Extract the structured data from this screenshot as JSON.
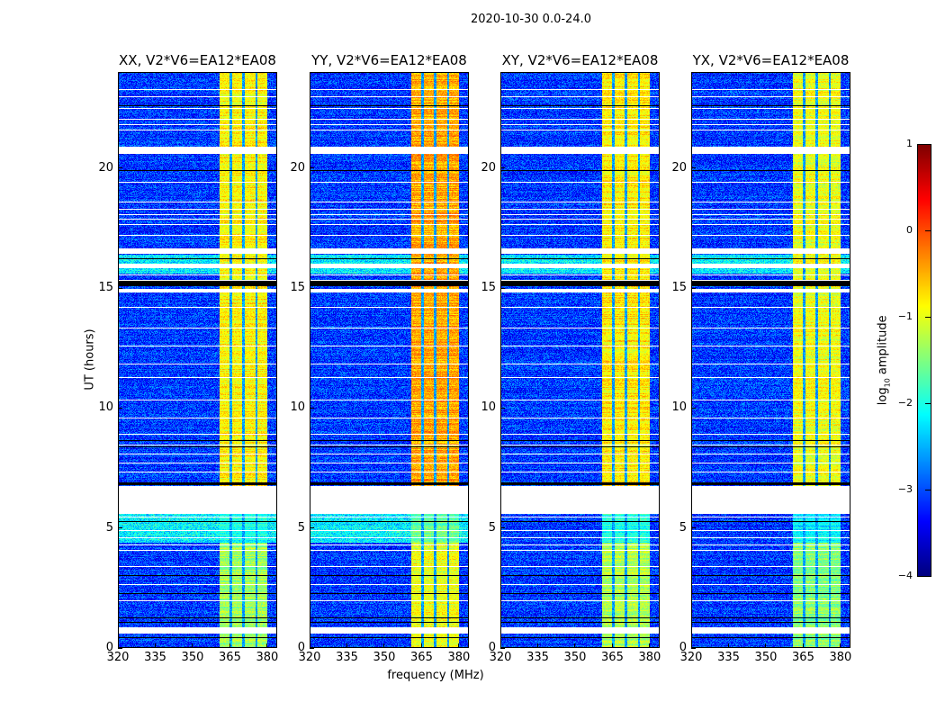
{
  "chart_data": {
    "type": "heatmap",
    "title": "2020-10-30 0.0-24.0",
    "xlabel": "frequency (MHz)",
    "ylabel": "UT (hours)",
    "xlim": [
      320,
      384
    ],
    "ylim": [
      0,
      24
    ],
    "xticks": [
      "320",
      "335",
      "350",
      "365",
      "380"
    ],
    "xtick_values": [
      320,
      335,
      350,
      365,
      380
    ],
    "yticks": [
      "0",
      "5",
      "10",
      "15",
      "20"
    ],
    "ytick_values": [
      0,
      5,
      10,
      15,
      20
    ],
    "colormap": "jet",
    "colorbar": {
      "label_base": "log",
      "label_sub": "10",
      "label_rest": " amplitude",
      "range": [
        -4,
        1
      ],
      "ticks": [
        "1",
        "0",
        "−1",
        "−2",
        "−3",
        "−4"
      ],
      "tick_values": [
        1,
        0,
        -1,
        -2,
        -3,
        -4
      ]
    },
    "panels": [
      {
        "title": "XX, V2*V6=EA12*EA08",
        "band_level": -0.85,
        "low_period_boost": 0.9
      },
      {
        "title": "YY, V2*V6=EA12*EA08",
        "band_level": -0.45,
        "low_period_boost": 0.9
      },
      {
        "title": "XY, V2*V6=EA12*EA08",
        "band_level": -0.8,
        "low_period_boost": 0.0
      },
      {
        "title": "YX, V2*V6=EA12*EA08",
        "band_level": -0.95,
        "low_period_boost": 0.0
      }
    ],
    "background_level": -3.1,
    "rfi_band_mhz": [
      360.7,
      380.0
    ],
    "rfi_band_gaps_mhz": [
      365.4,
      370.5,
      375.6
    ],
    "weak_band_hours": [
      [
        0,
        4.4
      ],
      [
        4.4,
        5.6
      ]
    ],
    "bright_background_hours": [
      [
        15.6,
        16.4
      ],
      [
        4.4,
        5.6
      ]
    ],
    "flagged_hours": [
      [
        5.59,
        6.75
      ],
      [
        20.6,
        20.9
      ],
      [
        16.42,
        16.65
      ],
      [
        15.83,
        16.01
      ],
      [
        14.81,
        14.96
      ],
      [
        0.6,
        0.85
      ],
      [
        23.25,
        23.29
      ],
      [
        22.95,
        22.99
      ],
      [
        22.46,
        22.5
      ],
      [
        22.01,
        22.05
      ],
      [
        21.79,
        21.83
      ],
      [
        21.56,
        21.6
      ],
      [
        19.39,
        19.43
      ],
      [
        18.56,
        18.6
      ],
      [
        18.26,
        18.3
      ],
      [
        18.04,
        18.08
      ],
      [
        17.85,
        17.89
      ],
      [
        17.62,
        17.66
      ],
      [
        17.17,
        17.21
      ],
      [
        15.52,
        15.56
      ],
      [
        15.3,
        15.34
      ],
      [
        14.17,
        14.21
      ],
      [
        13.31,
        13.35
      ],
      [
        12.56,
        12.6
      ],
      [
        11.81,
        11.85
      ],
      [
        11.25,
        11.29
      ],
      [
        10.31,
        10.35
      ],
      [
        9.56,
        9.6
      ],
      [
        8.89,
        8.93
      ],
      [
        8.44,
        8.48
      ],
      [
        8.06,
        8.1
      ],
      [
        7.69,
        7.73
      ],
      [
        7.31,
        7.35
      ],
      [
        5.44,
        5.48
      ],
      [
        4.88,
        4.92
      ],
      [
        4.58,
        4.62
      ],
      [
        4.28,
        4.32
      ],
      [
        4.05,
        4.09
      ],
      [
        3.38,
        3.42
      ],
      [
        2.63,
        2.67
      ],
      [
        1.95,
        1.99
      ]
    ],
    "zero_hours": [
      [
        22.58,
        22.62
      ],
      [
        19.88,
        19.92
      ],
      [
        16.2,
        16.24
      ],
      [
        15.08,
        15.3
      ],
      [
        8.63,
        8.67
      ],
      [
        8.36,
        8.4
      ],
      [
        6.78,
        6.9
      ],
      [
        5.25,
        5.29
      ],
      [
        3.0,
        3.04
      ],
      [
        2.25,
        2.29
      ],
      [
        1.24,
        1.28
      ],
      [
        1.05,
        1.09
      ],
      [
        0.41,
        0.45
      ]
    ]
  }
}
